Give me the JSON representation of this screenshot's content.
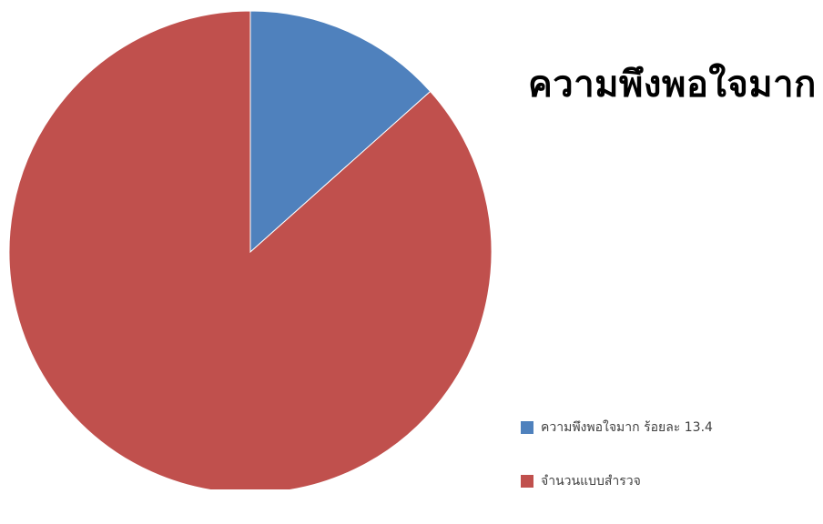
{
  "chart_data": {
    "type": "pie",
    "title": "ความพึงพอใจมาก",
    "slices": [
      {
        "label": "ความพึงพอใจมาก ร้อยละ 13.4",
        "value": 13.4,
        "color": "#4F81BD"
      },
      {
        "label": "จำนวนแบบสำรวจ",
        "value": 86.6,
        "color": "#C0504D"
      }
    ],
    "legend_position": "bottom-right"
  }
}
